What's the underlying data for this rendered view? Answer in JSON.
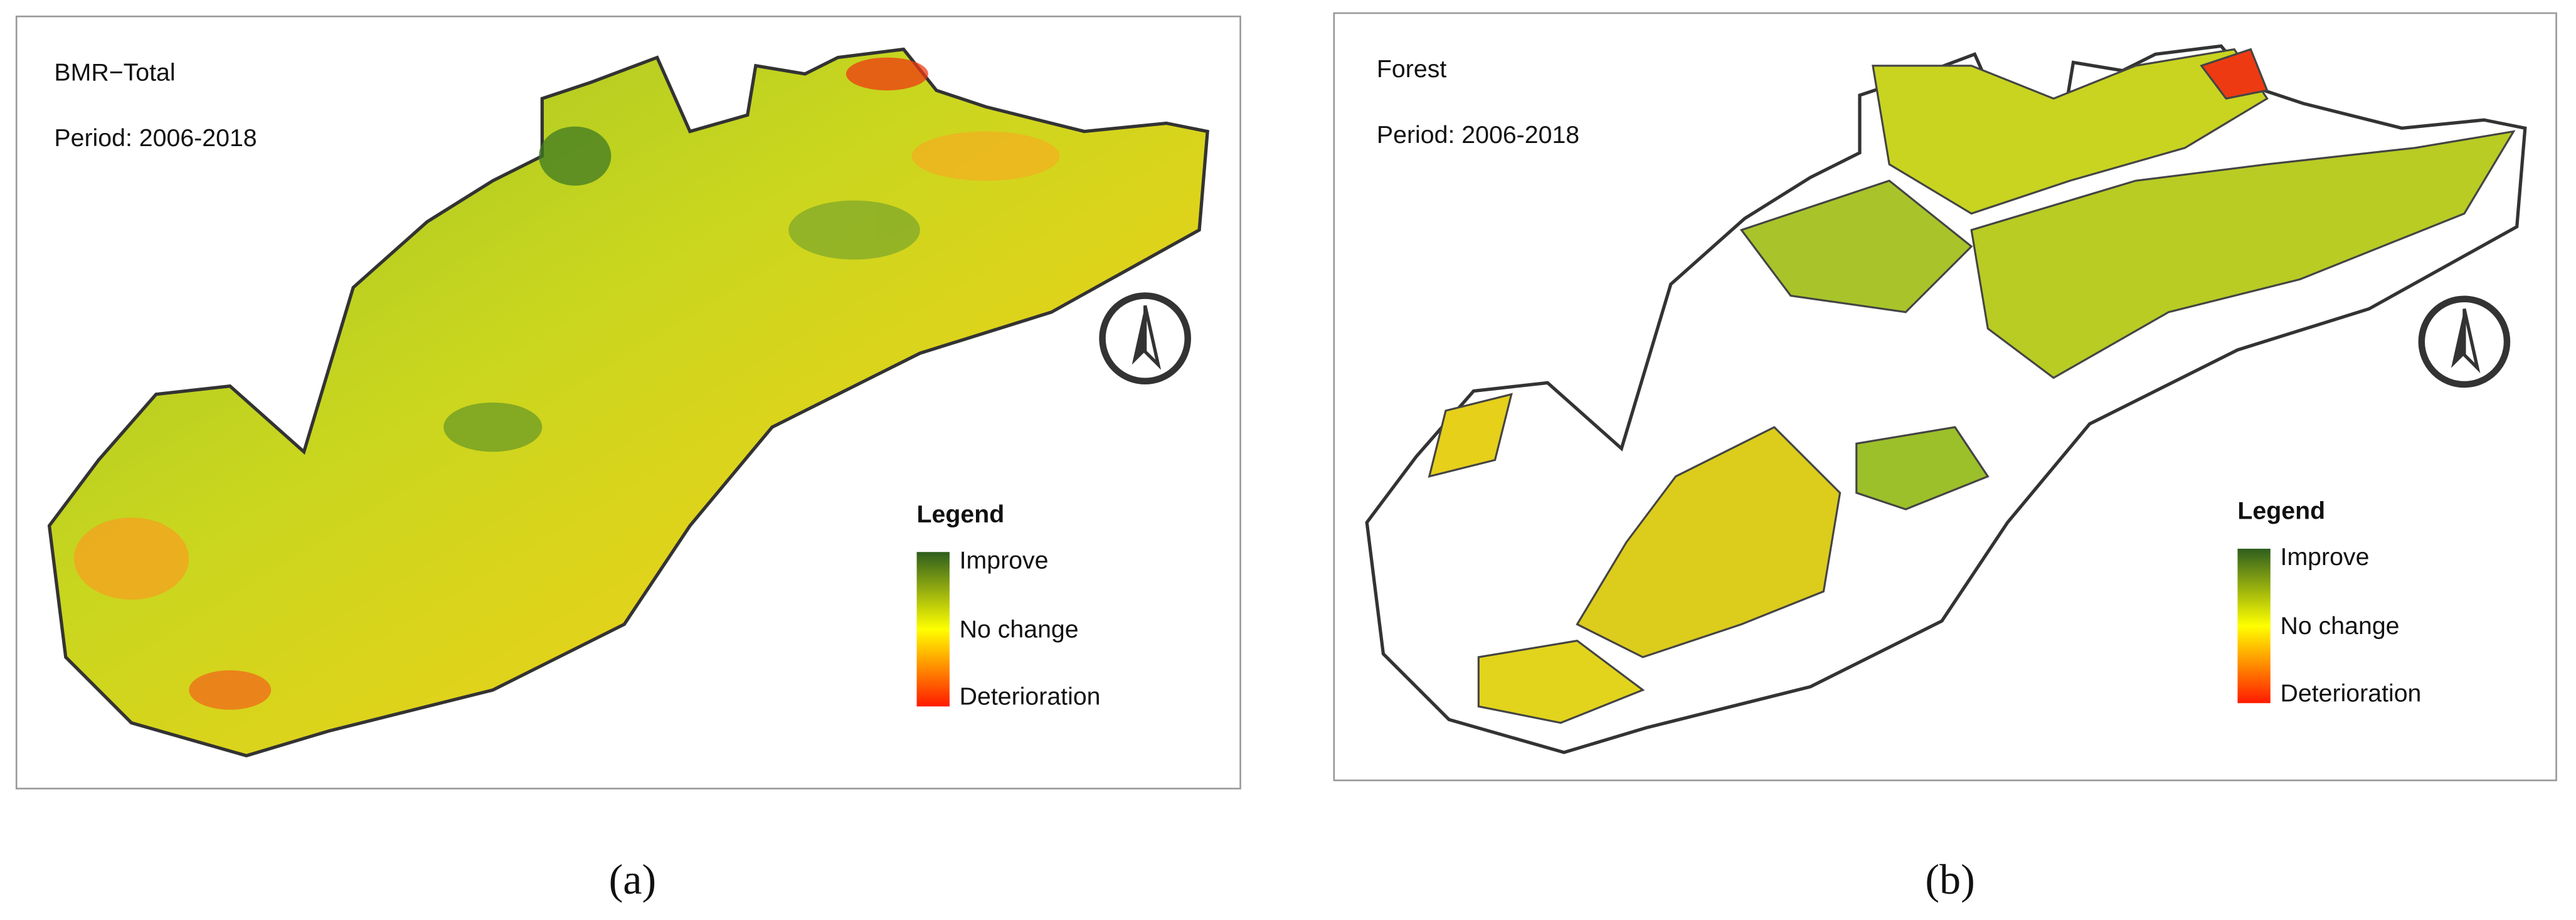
{
  "panels": [
    {
      "title": "BMR−Total",
      "period": "Period: 2006-2018",
      "legend": {
        "title": "Legend",
        "labels": [
          "Improve",
          "No change",
          "Deterioration"
        ]
      },
      "caption": "(a)"
    },
    {
      "title": "Forest",
      "period": "Period: 2006-2018",
      "legend": {
        "title": "Legend",
        "labels": [
          "Improve",
          "No change",
          "Deterioration"
        ]
      },
      "caption": "(b)"
    }
  ]
}
